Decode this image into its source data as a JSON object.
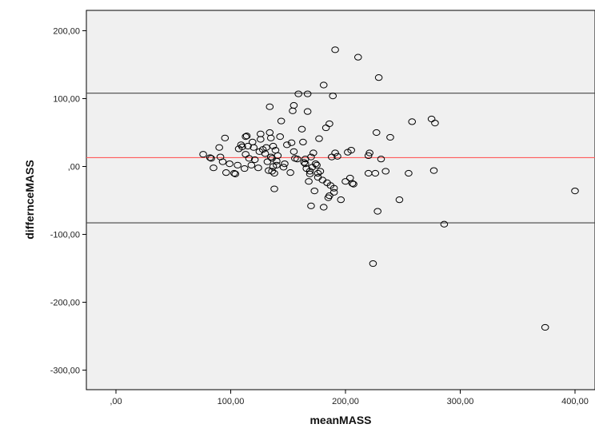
{
  "chart_data": {
    "type": "scatter",
    "title": "",
    "xlabel": "meanMASS",
    "ylabel": "differnceMASS",
    "xlim": [
      -25,
      420
    ],
    "ylim": [
      -330,
      230
    ],
    "x_ticks": [
      0,
      100,
      200,
      300,
      400
    ],
    "x_tick_labels": [
      ",00",
      "100,00",
      "200,00",
      "300,00",
      "400,00"
    ],
    "y_ticks": [
      200,
      100,
      0,
      -100,
      -200,
      -300
    ],
    "y_tick_labels": [
      "200,00",
      "100,00",
      ",00",
      "-100,00",
      "-200,00",
      "-300,00"
    ],
    "grid": false,
    "reference_lines": [
      {
        "y": 108,
        "color": "#444444"
      },
      {
        "y": 13,
        "color": "#ff5a5a"
      },
      {
        "y": -83,
        "color": "#444444"
      }
    ],
    "points": [
      [
        76,
        18
      ],
      [
        82,
        13
      ],
      [
        83,
        12
      ],
      [
        85,
        -2
      ],
      [
        90,
        28
      ],
      [
        91,
        14
      ],
      [
        93,
        7
      ],
      [
        95,
        42
      ],
      [
        96,
        -9
      ],
      [
        99,
        4
      ],
      [
        103,
        -10
      ],
      [
        104,
        -11
      ],
      [
        106,
        2
      ],
      [
        107,
        26
      ],
      [
        109,
        32
      ],
      [
        110,
        29
      ],
      [
        112,
        -3
      ],
      [
        113,
        44
      ],
      [
        113,
        18
      ],
      [
        114,
        45
      ],
      [
        115,
        30
      ],
      [
        116,
        12
      ],
      [
        118,
        2
      ],
      [
        119,
        36
      ],
      [
        120,
        28
      ],
      [
        121,
        10
      ],
      [
        124,
        -2
      ],
      [
        125,
        22
      ],
      [
        126,
        40
      ],
      [
        126,
        48
      ],
      [
        128,
        25
      ],
      [
        130,
        19
      ],
      [
        131,
        28
      ],
      [
        132,
        7
      ],
      [
        133,
        -6
      ],
      [
        134,
        50
      ],
      [
        134,
        88
      ],
      [
        135,
        14
      ],
      [
        135,
        42
      ],
      [
        136,
        12
      ],
      [
        136,
        -7
      ],
      [
        137,
        30
      ],
      [
        137,
        0
      ],
      [
        138,
        -10
      ],
      [
        138,
        -33
      ],
      [
        139,
        24
      ],
      [
        140,
        2
      ],
      [
        140,
        8
      ],
      [
        141,
        16
      ],
      [
        143,
        44
      ],
      [
        144,
        67
      ],
      [
        146,
        -1
      ],
      [
        147,
        4
      ],
      [
        149,
        32
      ],
      [
        152,
        -9
      ],
      [
        153,
        35
      ],
      [
        154,
        82
      ],
      [
        155,
        90
      ],
      [
        155,
        22
      ],
      [
        156,
        12
      ],
      [
        158,
        11
      ],
      [
        159,
        107
      ],
      [
        162,
        55
      ],
      [
        163,
        36
      ],
      [
        164,
        6
      ],
      [
        165,
        11
      ],
      [
        165,
        4
      ],
      [
        166,
        -3
      ],
      [
        167,
        81
      ],
      [
        167,
        107
      ],
      [
        168,
        -22
      ],
      [
        169,
        -7
      ],
      [
        169,
        -11
      ],
      [
        170,
        14
      ],
      [
        170,
        -58
      ],
      [
        171,
        -1
      ],
      [
        172,
        20
      ],
      [
        173,
        -36
      ],
      [
        174,
        4
      ],
      [
        175,
        2
      ],
      [
        176,
        -10
      ],
      [
        176,
        -16
      ],
      [
        177,
        41
      ],
      [
        178,
        -7
      ],
      [
        180,
        -20
      ],
      [
        181,
        -60
      ],
      [
        181,
        120
      ],
      [
        183,
        57
      ],
      [
        184,
        -24
      ],
      [
        185,
        -46
      ],
      [
        186,
        -43
      ],
      [
        186,
        63
      ],
      [
        187,
        -28
      ],
      [
        188,
        14
      ],
      [
        189,
        104
      ],
      [
        190,
        -32
      ],
      [
        190,
        -38
      ],
      [
        191,
        20
      ],
      [
        191,
        172
      ],
      [
        193,
        15
      ],
      [
        196,
        -49
      ],
      [
        200,
        -22
      ],
      [
        202,
        21
      ],
      [
        204,
        -17
      ],
      [
        205,
        24
      ],
      [
        206,
        -25
      ],
      [
        207,
        -26
      ],
      [
        211,
        161
      ],
      [
        220,
        -10
      ],
      [
        220,
        16
      ],
      [
        221,
        20
      ],
      [
        224,
        -143
      ],
      [
        226,
        -10
      ],
      [
        227,
        50
      ],
      [
        228,
        -66
      ],
      [
        229,
        131
      ],
      [
        231,
        11
      ],
      [
        235,
        -7
      ],
      [
        239,
        43
      ],
      [
        247,
        -49
      ],
      [
        255,
        -10
      ],
      [
        258,
        66
      ],
      [
        275,
        70
      ],
      [
        277,
        -6
      ],
      [
        278,
        64
      ],
      [
        286,
        -85
      ],
      [
        374,
        -237
      ],
      [
        400,
        -36
      ]
    ]
  }
}
